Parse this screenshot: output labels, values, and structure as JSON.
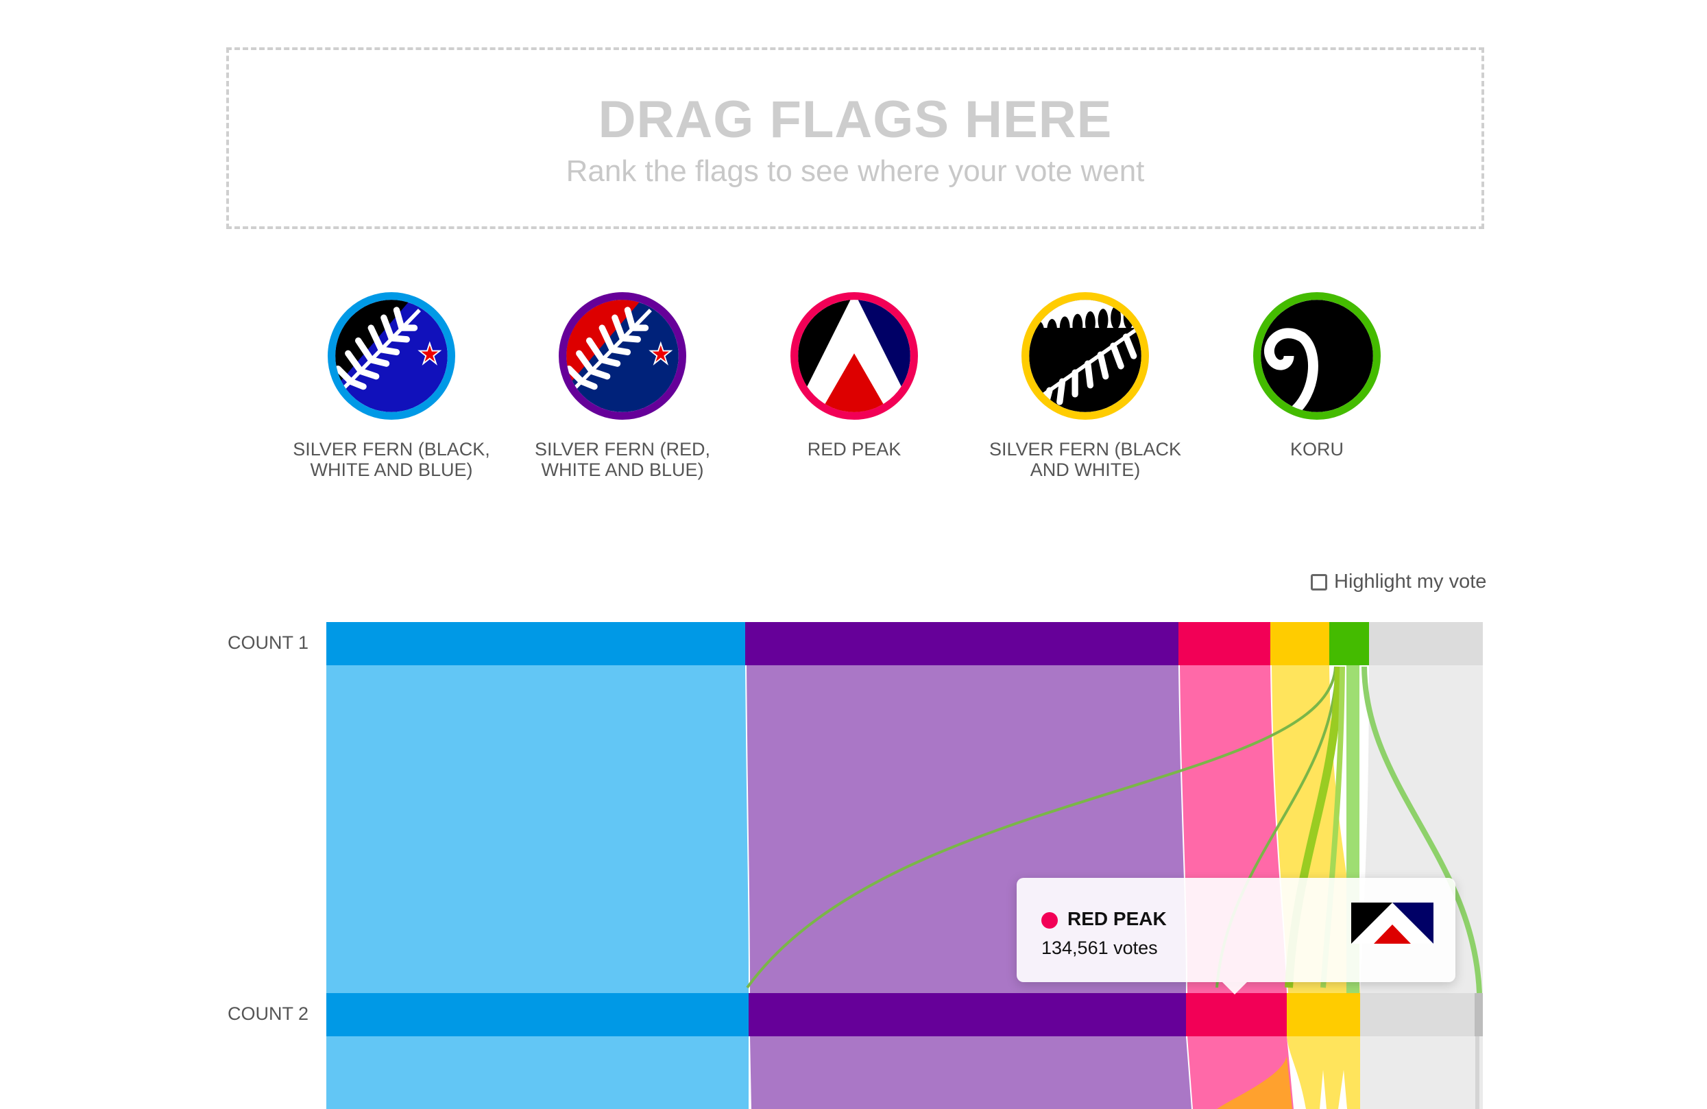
{
  "dropzone": {
    "title": "DRAG FLAGS HERE",
    "subtitle": "Rank the flags to see where your vote went"
  },
  "flags": [
    {
      "label": "SILVER FERN (BLACK, WHITE AND BLUE)",
      "color": "#0099e6",
      "icon": "silver-fern-black-white-blue-flag"
    },
    {
      "label": "SILVER FERN (RED, WHITE AND BLUE)",
      "color": "#660099",
      "icon": "silver-fern-red-white-blue-flag"
    },
    {
      "label": "RED PEAK",
      "color": "#f20056",
      "icon": "red-peak-flag"
    },
    {
      "label": "SILVER FERN (BLACK AND WHITE)",
      "color": "#ffcc00",
      "icon": "silver-fern-black-white-flag"
    },
    {
      "label": "KORU",
      "color": "#44bb00",
      "icon": "koru-flag"
    }
  ],
  "highlight": {
    "label": "Highlight my vote",
    "checked": false
  },
  "counts": [
    {
      "label": "COUNT 1"
    },
    {
      "label": "COUNT 2"
    }
  ],
  "tooltip": {
    "name": "RED PEAK",
    "votes": "134,561 votes",
    "color": "#f20056"
  }
}
